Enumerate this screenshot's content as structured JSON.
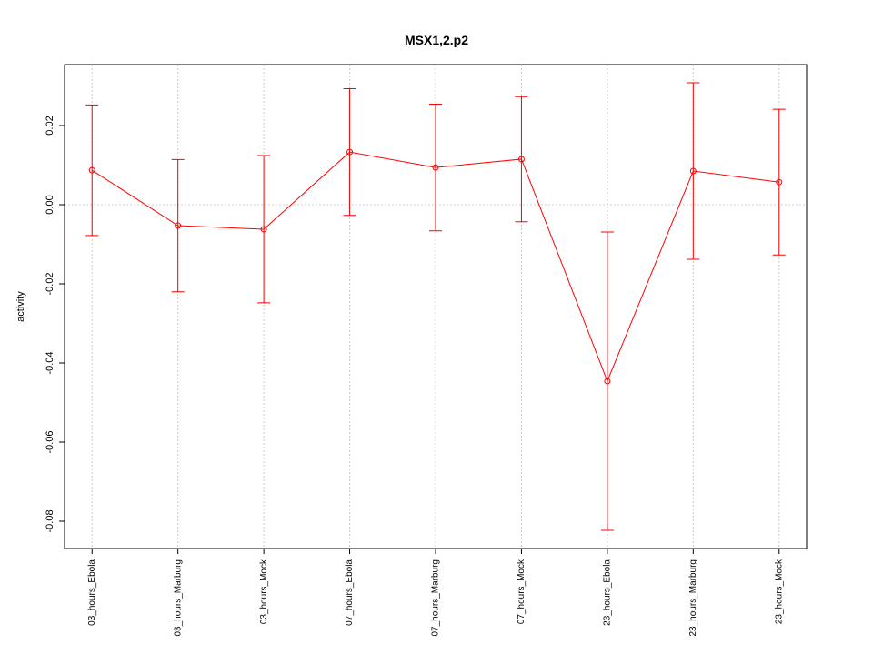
{
  "chart_data": {
    "type": "errorbar-line",
    "title": "MSX1,2.p2",
    "y_label": "activity",
    "categories": [
      "03_hours_Ebola",
      "03_hours_Marburg",
      "03_hours_Mock",
      "07_hours_Ebola",
      "07_hours_Marburg",
      "07_hours_Mock",
      "23_hours_Ebola",
      "23_hours_Marburg",
      "23_hours_Mock"
    ],
    "series": [
      {
        "name": "MSX1,2.p2",
        "color": "#ff0000",
        "values": [
          0.0087,
          -0.0053,
          -0.0062,
          0.0133,
          0.0094,
          0.0115,
          -0.0446,
          0.0085,
          0.0057
        ],
        "error": [
          0.0165,
          0.0167,
          0.0186,
          0.016,
          0.016,
          0.0158,
          0.0377,
          0.0223,
          0.0184
        ]
      }
    ],
    "ylim": [
      -0.0869,
      0.0354
    ],
    "yticks": [
      -0.08,
      -0.06,
      -0.04,
      -0.02,
      {
        "value": 0,
        "label": "0.00"
      },
      0.02
    ],
    "hline": 0,
    "grid": true
  }
}
